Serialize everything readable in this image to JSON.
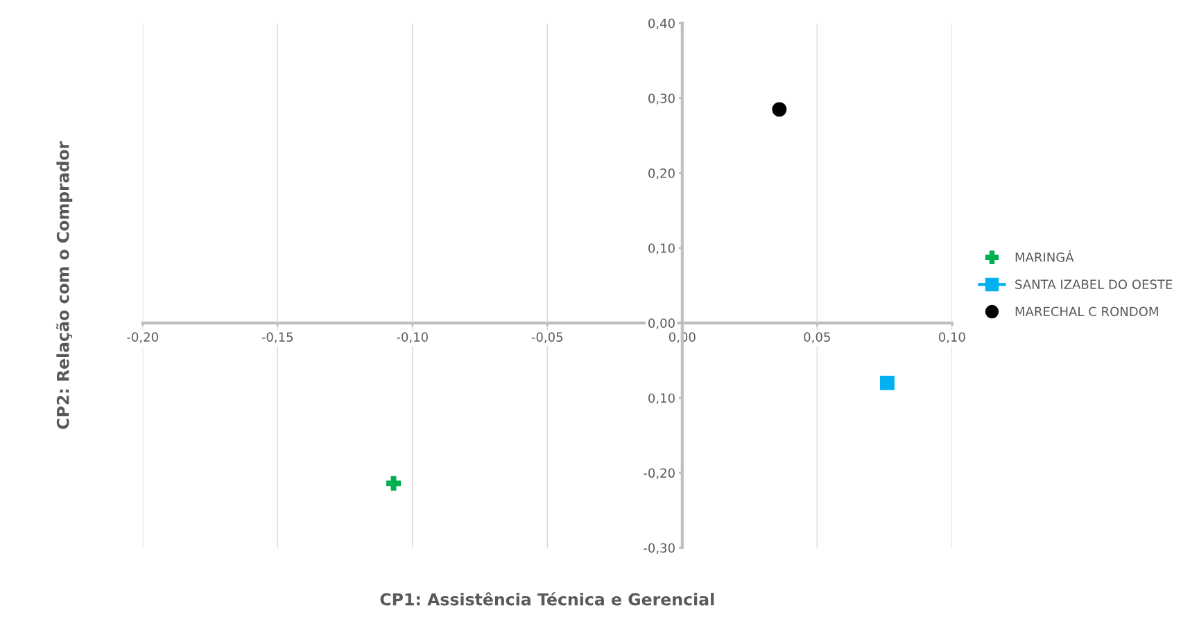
{
  "chart_data": {
    "type": "scatter",
    "xlabel": "CP1: Assistência Técnica e Gerencial",
    "ylabel": "CP2: Relação com o Comprador",
    "series": [
      {
        "name": "MARINGÁ",
        "color": "#00b050",
        "marker": "cross",
        "x": [
          -0.107
        ],
        "values": [
          -0.214
        ]
      },
      {
        "name": "SANTA IZABEL DO OESTE",
        "type": "line",
        "color": "#00b0f0",
        "marker": "square",
        "x": [
          0.076
        ],
        "values": [
          -0.08
        ]
      },
      {
        "name": "MARECHAL C RONDOM",
        "color": "#000000",
        "marker": "circle",
        "x": [
          0.036
        ],
        "values": [
          0.285
        ]
      }
    ],
    "xlim": [
      -0.2,
      0.1
    ],
    "xticks": [
      {
        "value": -0.2,
        "label": "-0,20"
      },
      {
        "value": -0.15,
        "label": "-0,15"
      },
      {
        "value": -0.1,
        "label": "-0,10"
      },
      {
        "value": -0.05,
        "label": "-0,05"
      },
      {
        "value": 0,
        "label": "0,00"
      },
      {
        "value": 0.05,
        "label": "0,05"
      },
      {
        "value": 0.1,
        "label": "0,10"
      }
    ],
    "ylim": [
      -0.3,
      0.4
    ],
    "yticks": [
      {
        "value": -0.3,
        "label": "-0,30"
      },
      {
        "value": -0.2,
        "label": "-0,20"
      },
      {
        "value": -0.1,
        "label": "0,10"
      },
      {
        "value": 0,
        "label": "0,00"
      },
      {
        "value": 0.1,
        "label": "0,10"
      },
      {
        "value": 0.2,
        "label": "0,20"
      },
      {
        "value": 0.3,
        "label": "0,30"
      },
      {
        "value": 0.4,
        "label": "0,40"
      }
    ],
    "grid": "x",
    "legend": "right"
  }
}
